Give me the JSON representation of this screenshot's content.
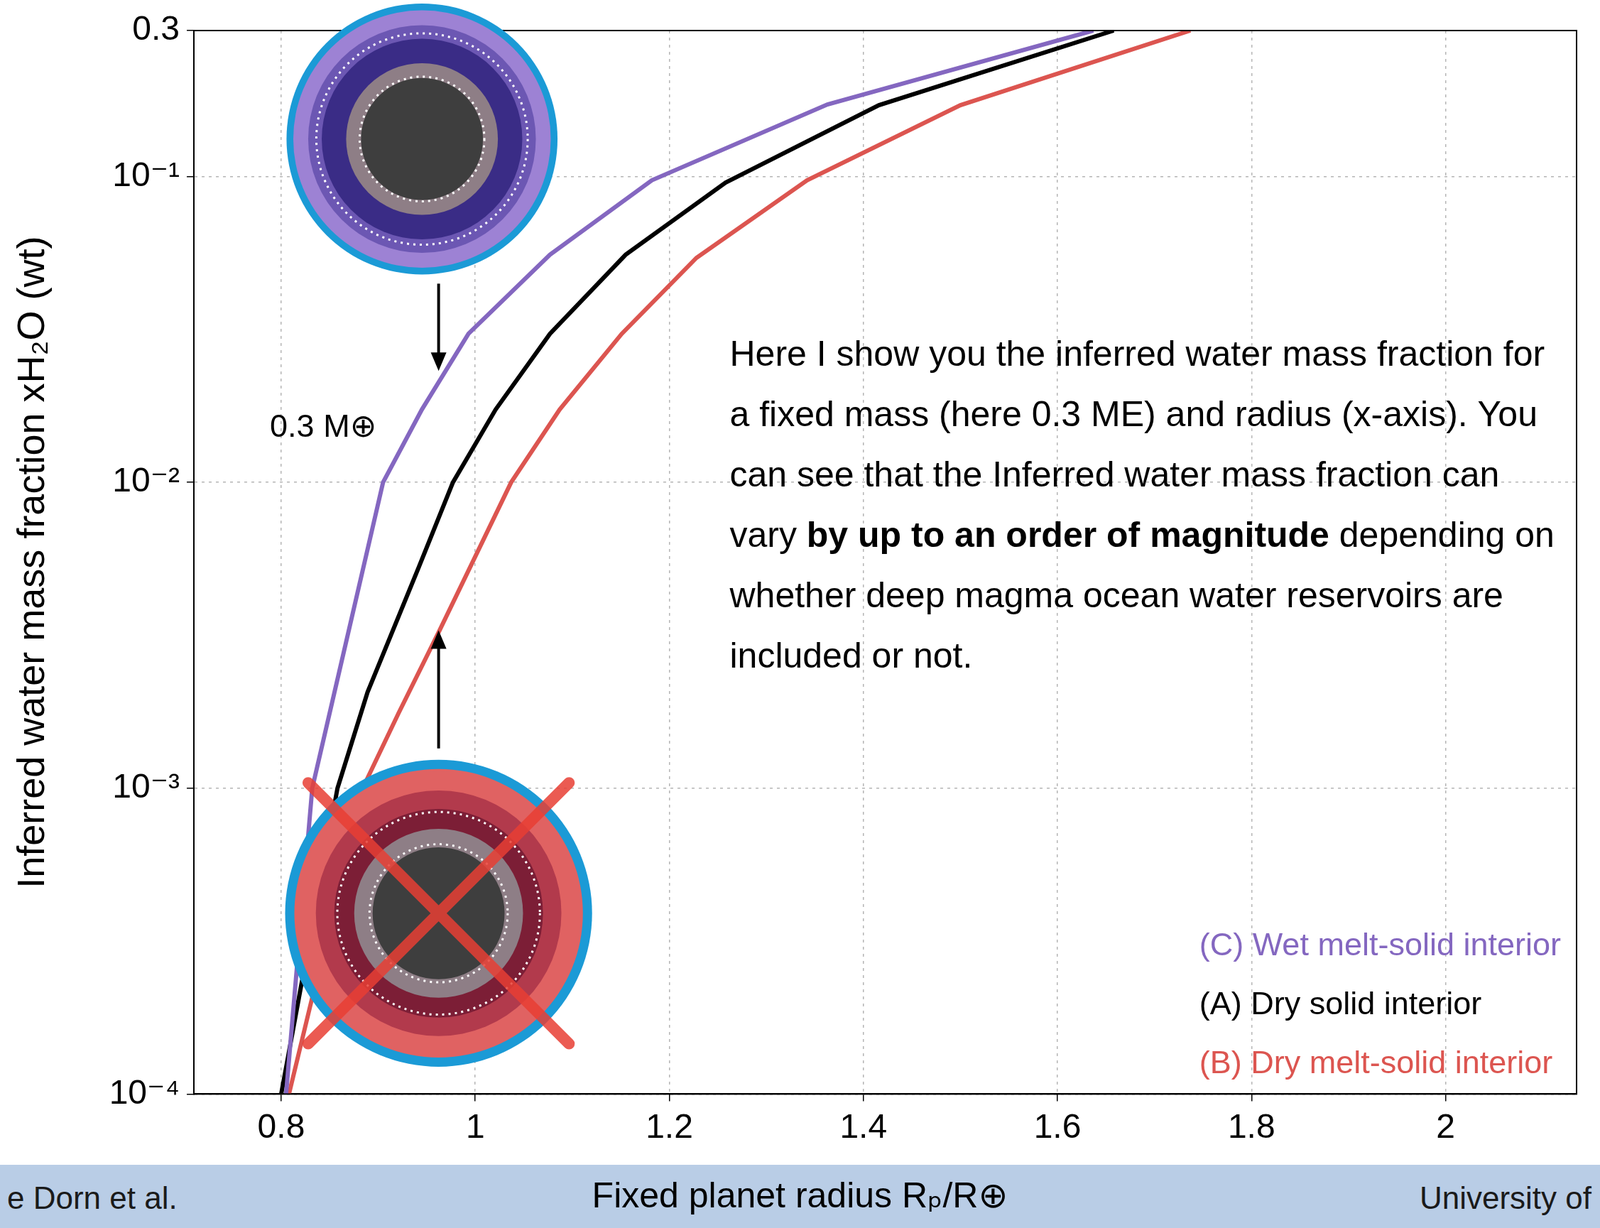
{
  "chart_data": {
    "type": "line",
    "x_label": "Fixed planet radius Rₚ/R⊕",
    "y_label": "Inferred water mass fraction xH₂O (wt)",
    "xlim": [
      0.71,
      2.135
    ],
    "xticks": [
      0.8,
      1,
      1.2,
      1.4,
      1.6,
      1.8,
      2
    ],
    "ylim": [
      0.0001,
      0.3
    ],
    "yticks": [
      {
        "value": 0.0001,
        "label": "10⁻⁴"
      },
      {
        "value": 0.001,
        "label": "10⁻³"
      },
      {
        "value": 0.01,
        "label": "10⁻²"
      },
      {
        "value": 0.1,
        "label": "10⁻¹"
      },
      {
        "value": 0.3,
        "label": "0.3"
      }
    ],
    "log": "y",
    "grid": true,
    "legend": "lower right",
    "series": [
      {
        "name": "(C) Wet melt-solid interior",
        "color": "#8467c0",
        "x": [
          0.805,
          0.832,
          0.905,
          0.945,
          0.993,
          1.077,
          1.182,
          1.363,
          1.637
        ],
        "values": [
          0.0001,
          0.001,
          0.01,
          0.0173,
          0.0306,
          0.0555,
          0.0972,
          0.172,
          0.3
        ]
      },
      {
        "name": "(A) Dry solid interior",
        "color": "#000000",
        "x": [
          0.8,
          0.858,
          0.889,
          0.942,
          0.977,
          1.021,
          1.077,
          1.155,
          1.258,
          1.416,
          1.658
        ],
        "values": [
          0.0001,
          0.001,
          0.00206,
          0.0053,
          0.01,
          0.0173,
          0.0306,
          0.0555,
          0.0955,
          0.171,
          0.3
        ]
      },
      {
        "name": "(B) Dry melt-solid interior",
        "color": "#dc5550",
        "x": [
          0.808,
          0.884,
          0.921,
          0.963,
          1.037,
          1.087,
          1.151,
          1.228,
          1.342,
          1.5,
          1.737
        ],
        "values": [
          0.0001,
          0.001,
          0.00176,
          0.00327,
          0.01,
          0.0173,
          0.0306,
          0.0542,
          0.0972,
          0.171,
          0.3
        ]
      }
    ],
    "annotations": [
      {
        "text": "0.3 M⊕"
      },
      {
        "text": "Here I show you the inferred water mass fraction for a fixed mass (here 0.3 ME) and radius (x-axis). You can see that the Inferred water mass fraction can vary by up to an order of magnitude depending on whether deep magma ocean water reservoirs are included or not.",
        "emphasis": "by up to an order of magnitude"
      }
    ]
  },
  "footer": {
    "left": "e Dorn et al.",
    "right": "University of"
  }
}
